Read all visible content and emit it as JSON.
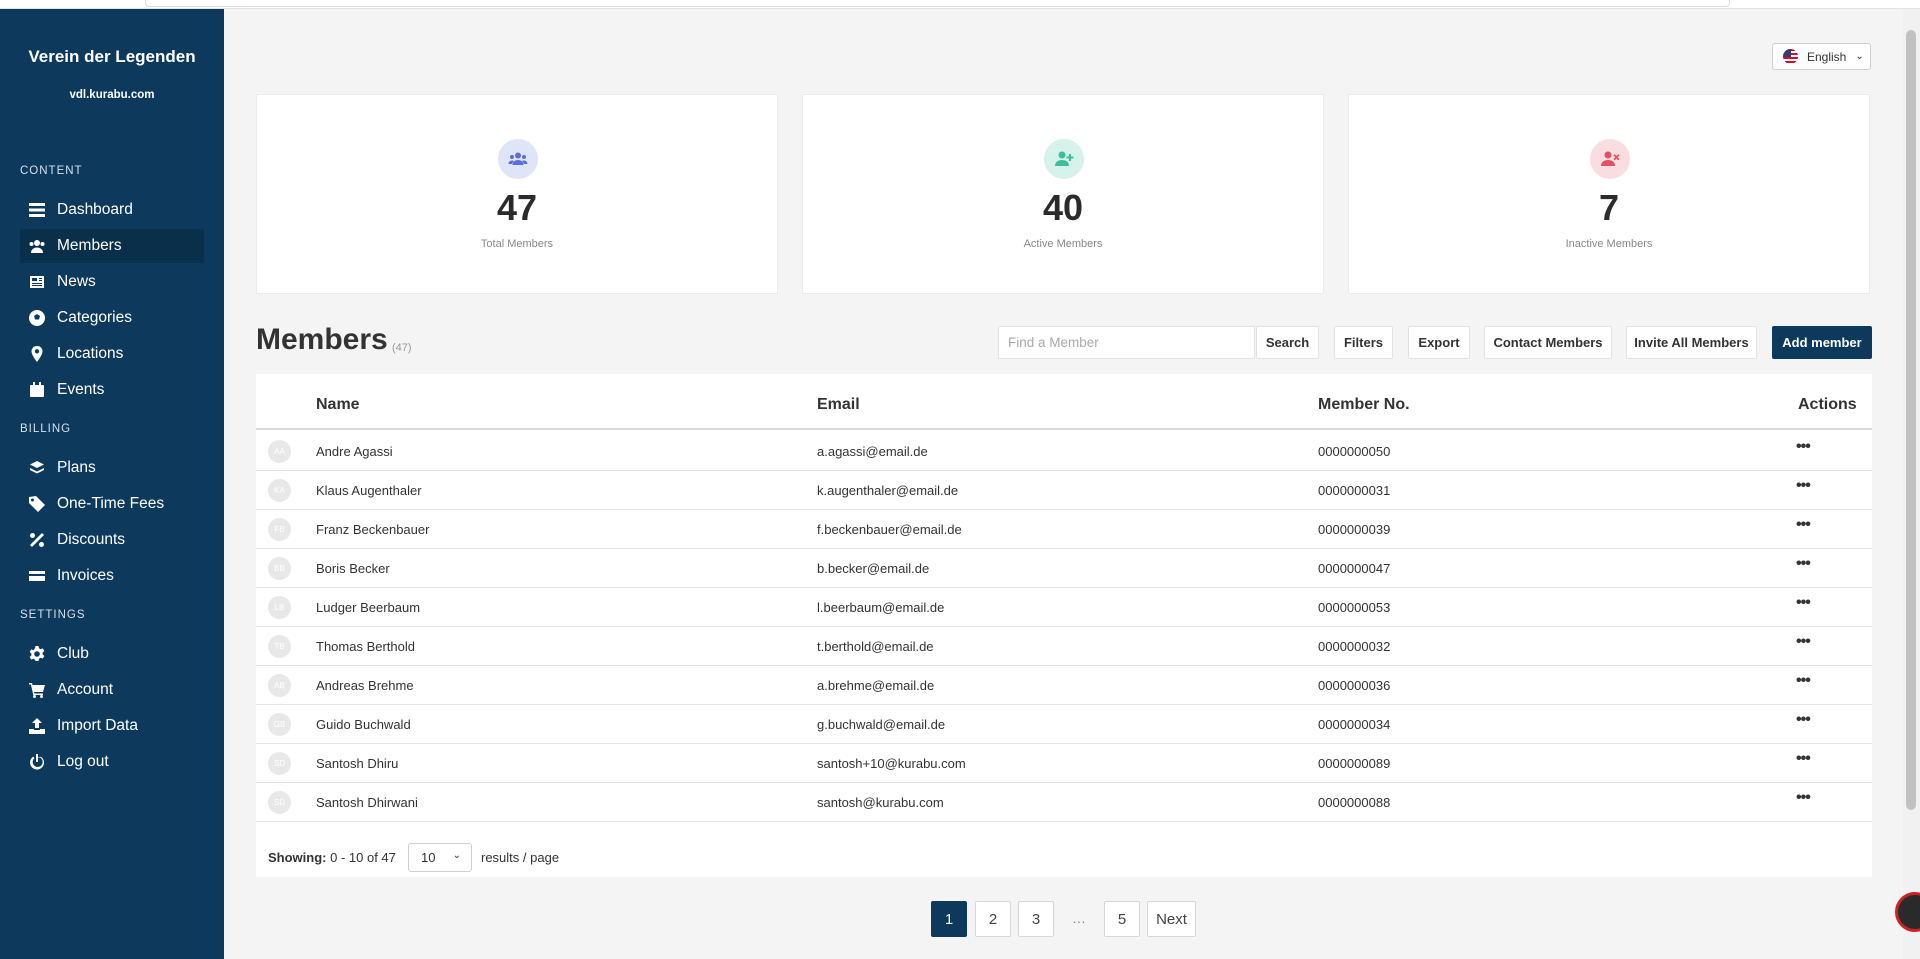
{
  "sidebar": {
    "club_name": "Verein der Legenden",
    "club_domain": "vdl.kurabu.com",
    "sections": {
      "content": "CONTENT",
      "billing": "BILLING",
      "settings": "SETTINGS"
    },
    "items": {
      "dashboard": "Dashboard",
      "members": "Members",
      "news": "News",
      "categories": "Categories",
      "locations": "Locations",
      "events": "Events",
      "plans": "Plans",
      "one_time_fees": "One-Time Fees",
      "discounts": "Discounts",
      "invoices": "Invoices",
      "club": "Club",
      "account": "Account",
      "import_data": "Import Data",
      "log_out": "Log out"
    },
    "active_item": "Members"
  },
  "language": {
    "selected": "English"
  },
  "stats": {
    "total": {
      "value": "47",
      "label": "Total Members"
    },
    "active": {
      "value": "40",
      "label": "Active Members"
    },
    "inactive": {
      "value": "7",
      "label": "Inactive Members"
    }
  },
  "members_header": {
    "title": "Members",
    "count": "(47)",
    "search_placeholder": "Find a Member",
    "search_label": "Search",
    "filters_label": "Filters",
    "export_label": "Export",
    "contact_label": "Contact Members",
    "invite_label": "Invite All Members",
    "add_label": "Add member"
  },
  "table": {
    "columns": {
      "name": "Name",
      "email": "Email",
      "member_no": "Member No.",
      "actions": "Actions"
    },
    "rows": [
      {
        "initials": "AA",
        "name": "Andre Agassi",
        "email": "a.agassi@email.de",
        "member_no": "0000000050"
      },
      {
        "initials": "KA",
        "name": "Klaus Augenthaler",
        "email": "k.augenthaler@email.de",
        "member_no": "0000000031"
      },
      {
        "initials": "FB",
        "name": "Franz Beckenbauer",
        "email": "f.beckenbauer@email.de",
        "member_no": "0000000039"
      },
      {
        "initials": "BB",
        "name": "Boris Becker",
        "email": "b.becker@email.de",
        "member_no": "0000000047"
      },
      {
        "initials": "LB",
        "name": "Ludger Beerbaum",
        "email": "l.beerbaum@email.de",
        "member_no": "0000000053"
      },
      {
        "initials": "TB",
        "name": "Thomas Berthold",
        "email": "t.berthold@email.de",
        "member_no": "0000000032"
      },
      {
        "initials": "AB",
        "name": "Andreas Brehme",
        "email": "a.brehme@email.de",
        "member_no": "0000000036"
      },
      {
        "initials": "GB",
        "name": "Guido Buchwald",
        "email": "g.buchwald@email.de",
        "member_no": "0000000034"
      },
      {
        "initials": "SD",
        "name": "Santosh Dhiru",
        "email": "santosh+10@kurabu.com",
        "member_no": "0000000089"
      },
      {
        "initials": "SD",
        "name": "Santosh Dhirwani",
        "email": "santosh@kurabu.com",
        "member_no": "0000000088"
      }
    ],
    "actions_glyph": "•••",
    "footer": {
      "showing_label": "Showing:",
      "showing_range": "0 - 10 of 47",
      "per_page": "10",
      "per_page_suffix": "results / page"
    }
  },
  "pagination": {
    "pages": [
      "1",
      "2",
      "3",
      "5"
    ],
    "ellipsis": "…",
    "next": "Next",
    "current": "1"
  },
  "colors": {
    "sidebar": "#0d3a5c",
    "primary": "#0d3a5c",
    "total_icon": "#5b6fd6",
    "active_icon": "#3cbf9a",
    "inactive_icon": "#e05260"
  }
}
